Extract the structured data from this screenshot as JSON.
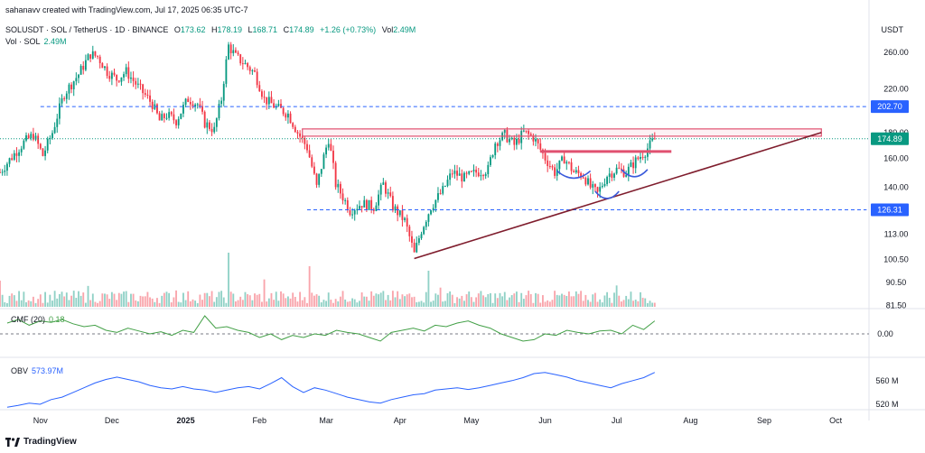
{
  "header": "sahanavv created with TradingView.com, Jul 17, 2025 06:35 UTC-7",
  "legend": {
    "symbol": "SOLUSDT · SOL / TetherUS · 1D · BINANCE",
    "o_label": "O",
    "o_value": "173.62",
    "h_label": "H",
    "h_value": "178.19",
    "l_label": "L",
    "l_value": "168.71",
    "c_label": "C",
    "c_value": "174.89",
    "change": "+1.26 (+0.73%)",
    "vol_label": "Vol",
    "vol_value": "2.49M",
    "vol_sol_label": "Vol · SOL",
    "vol_sol_value": "2.49M"
  },
  "currency": "USDT",
  "footer": "TradingView",
  "colors": {
    "up": "#089981",
    "down": "#f23645",
    "accent_blue": "#2962ff",
    "cmf": "#43a047",
    "obv": "#2962ff",
    "pattern": "#e05170",
    "trend": "#7f1d2d"
  },
  "chart_data": [
    {
      "type": "candlestick",
      "title": "SOLUSDT · SOL / TetherUS · 1D · BINANCE",
      "y_scale": "log",
      "y_ticks": [
        "260.00",
        "220.00",
        "180.00",
        "160.00",
        "140.00",
        "113.00",
        "100.50",
        "90.50",
        "81.50"
      ],
      "y_tick_values": [
        260,
        220,
        180,
        160,
        140,
        113,
        100.5,
        90.5,
        81.5
      ],
      "x_ticks": [
        "Nov",
        "Dec",
        "2025",
        "Feb",
        "Mar",
        "Apr",
        "May",
        "Jun",
        "Jul",
        "Aug",
        "Sep",
        "Oct"
      ],
      "x_tick_dates": [
        "2024-11-01",
        "2024-12-01",
        "2025-01-01",
        "2025-02-01",
        "2025-03-01",
        "2025-04-01",
        "2025-05-01",
        "2025-06-01",
        "2025-07-01",
        "2025-08-01",
        "2025-09-01",
        "2025-10-01"
      ],
      "price_labels": [
        {
          "text": "202.70",
          "value": 202.7,
          "style": "dashed",
          "color": "#2962ff"
        },
        {
          "text": "174.89",
          "value": 174.89,
          "style": "dotted",
          "color": "#089981"
        },
        {
          "text": "126.31",
          "value": 126.31,
          "style": "dashed",
          "color": "#2962ff"
        }
      ],
      "price_path": [
        {
          "date": "2024-10-15",
          "price": 150
        },
        {
          "date": "2024-10-25",
          "price": 172
        },
        {
          "date": "2024-10-29",
          "price": 178
        },
        {
          "date": "2024-11-02",
          "price": 162
        },
        {
          "date": "2024-11-06",
          "price": 180
        },
        {
          "date": "2024-11-11",
          "price": 215
        },
        {
          "date": "2024-11-17",
          "price": 235
        },
        {
          "date": "2024-11-22",
          "price": 258
        },
        {
          "date": "2024-11-25",
          "price": 255
        },
        {
          "date": "2024-11-29",
          "price": 238
        },
        {
          "date": "2024-12-03",
          "price": 230
        },
        {
          "date": "2024-12-07",
          "price": 238
        },
        {
          "date": "2024-12-12",
          "price": 222
        },
        {
          "date": "2024-12-18",
          "price": 205
        },
        {
          "date": "2024-12-21",
          "price": 190
        },
        {
          "date": "2024-12-24",
          "price": 195
        },
        {
          "date": "2024-12-28",
          "price": 190
        },
        {
          "date": "2025-01-02",
          "price": 210
        },
        {
          "date": "2025-01-06",
          "price": 205
        },
        {
          "date": "2025-01-09",
          "price": 188
        },
        {
          "date": "2025-01-13",
          "price": 182
        },
        {
          "date": "2025-01-16",
          "price": 210
        },
        {
          "date": "2025-01-19",
          "price": 268
        },
        {
          "date": "2025-01-22",
          "price": 255
        },
        {
          "date": "2025-01-26",
          "price": 246
        },
        {
          "date": "2025-01-30",
          "price": 236
        },
        {
          "date": "2025-02-03",
          "price": 210
        },
        {
          "date": "2025-02-08",
          "price": 202
        },
        {
          "date": "2025-02-13",
          "price": 196
        },
        {
          "date": "2025-02-17",
          "price": 180
        },
        {
          "date": "2025-02-21",
          "price": 168
        },
        {
          "date": "2025-02-25",
          "price": 140
        },
        {
          "date": "2025-03-02",
          "price": 175
        },
        {
          "date": "2025-03-05",
          "price": 142
        },
        {
          "date": "2025-03-11",
          "price": 126
        },
        {
          "date": "2025-03-16",
          "price": 130
        },
        {
          "date": "2025-03-21",
          "price": 128
        },
        {
          "date": "2025-03-25",
          "price": 142
        },
        {
          "date": "2025-03-29",
          "price": 128
        },
        {
          "date": "2025-04-03",
          "price": 120
        },
        {
          "date": "2025-04-07",
          "price": 103
        },
        {
          "date": "2025-04-10",
          "price": 115
        },
        {
          "date": "2025-04-14",
          "price": 128
        },
        {
          "date": "2025-04-19",
          "price": 138
        },
        {
          "date": "2025-04-23",
          "price": 150
        },
        {
          "date": "2025-04-28",
          "price": 146
        },
        {
          "date": "2025-05-03",
          "price": 150
        },
        {
          "date": "2025-05-08",
          "price": 152
        },
        {
          "date": "2025-05-11",
          "price": 172
        },
        {
          "date": "2025-05-15",
          "price": 178
        },
        {
          "date": "2025-05-19",
          "price": 170
        },
        {
          "date": "2025-05-23",
          "price": 180
        },
        {
          "date": "2025-05-27",
          "price": 176
        },
        {
          "date": "2025-06-01",
          "price": 160
        },
        {
          "date": "2025-06-05",
          "price": 150
        },
        {
          "date": "2025-06-09",
          "price": 160
        },
        {
          "date": "2025-06-13",
          "price": 150
        },
        {
          "date": "2025-06-17",
          "price": 148
        },
        {
          "date": "2025-06-20",
          "price": 140
        },
        {
          "date": "2025-06-23",
          "price": 136
        },
        {
          "date": "2025-06-27",
          "price": 148
        },
        {
          "date": "2025-07-01",
          "price": 152
        },
        {
          "date": "2025-07-05",
          "price": 150
        },
        {
          "date": "2025-07-09",
          "price": 158
        },
        {
          "date": "2025-07-13",
          "price": 165
        },
        {
          "date": "2025-07-17",
          "price": 174.89
        }
      ],
      "annotations": [
        {
          "type": "resistance-zone",
          "from": "2025-02-19",
          "to": "2025-09-25",
          "low": 177,
          "high": 183
        },
        {
          "type": "neckline",
          "from": "2025-05-30",
          "to": "2025-07-24",
          "value": 165
        },
        {
          "type": "dashed-level",
          "from": "2024-11-01",
          "to": "2025-10-14",
          "value": 202.7
        },
        {
          "type": "dashed-level",
          "from": "2025-02-21",
          "to": "2025-10-14",
          "value": 126.31
        },
        {
          "type": "trendline",
          "from": {
            "date": "2025-04-07",
            "price": 101
          },
          "to": {
            "date": "2025-09-25",
            "price": 180
          }
        },
        {
          "type": "arc",
          "from": "2025-06-06",
          "to": "2025-06-20",
          "bottom": 146
        },
        {
          "type": "arc",
          "from": "2025-06-22",
          "to": "2025-07-02",
          "bottom": 133
        },
        {
          "type": "arc",
          "from": "2025-07-03",
          "to": "2025-07-14",
          "bottom": 147
        }
      ]
    },
    {
      "type": "bar",
      "title": "Vol · SOL",
      "series": [
        {
          "name": "Vol · SOL",
          "last": "2.49M"
        }
      ]
    },
    {
      "type": "line",
      "title": "CMF (20)",
      "last": "0.18",
      "y_ticks": [
        "0.00"
      ],
      "y_tick_values": [
        0
      ],
      "values": [
        0.15,
        0.2,
        0.12,
        0.18,
        0.16,
        0.2,
        0.14,
        0.1,
        0.12,
        0.05,
        0.02,
        0.08,
        0.04,
        0.0,
        0.03,
        -0.02,
        0.05,
        0.02,
        0.25,
        0.08,
        0.1,
        0.05,
        0.02,
        -0.05,
        0.0,
        -0.08,
        -0.02,
        -0.05,
        0.0,
        -0.02,
        0.05,
        0.02,
        0.0,
        -0.05,
        -0.1,
        0.02,
        0.05,
        0.08,
        0.04,
        0.12,
        0.1,
        0.15,
        0.18,
        0.12,
        0.08,
        0.0,
        -0.05,
        -0.1,
        -0.08,
        0.0,
        -0.02,
        0.05,
        0.02,
        0.0,
        0.04,
        0.05,
        0.0,
        0.12,
        0.06,
        0.18
      ]
    },
    {
      "type": "line",
      "title": "OBV",
      "last": "573.97M",
      "y_ticks": [
        "560 M",
        "520 M"
      ],
      "y_tick_values": [
        560,
        520
      ],
      "values": [
        515,
        518,
        522,
        520,
        528,
        532,
        540,
        548,
        556,
        562,
        566,
        562,
        558,
        552,
        548,
        546,
        550,
        546,
        544,
        540,
        544,
        548,
        550,
        546,
        555,
        565,
        550,
        540,
        548,
        544,
        538,
        532,
        528,
        524,
        522,
        528,
        532,
        536,
        538,
        544,
        546,
        548,
        545,
        548,
        552,
        556,
        560,
        565,
        572,
        574,
        570,
        566,
        560,
        556,
        552,
        548,
        555,
        560,
        565,
        573.97
      ]
    }
  ]
}
